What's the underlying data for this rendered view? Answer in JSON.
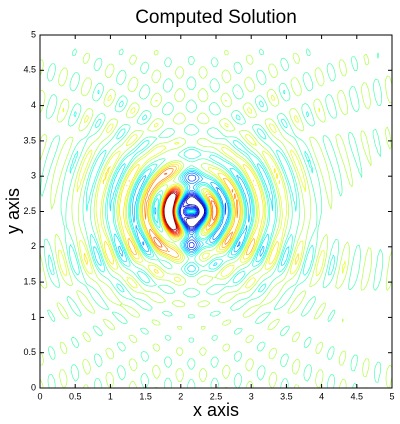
{
  "chart_data": {
    "type": "contour",
    "title": "Computed Solution",
    "x_label": "x axis",
    "y_label": "y axis",
    "xlim": [
      0,
      5
    ],
    "ylim": [
      0,
      5
    ],
    "xticks": [
      0,
      0.5,
      1,
      1.5,
      2,
      2.5,
      3,
      3.5,
      4,
      4.5,
      5
    ],
    "yticks": [
      0,
      0.5,
      1,
      1.5,
      2,
      2.5,
      3,
      3.5,
      4,
      4.5,
      5
    ]
  }
}
